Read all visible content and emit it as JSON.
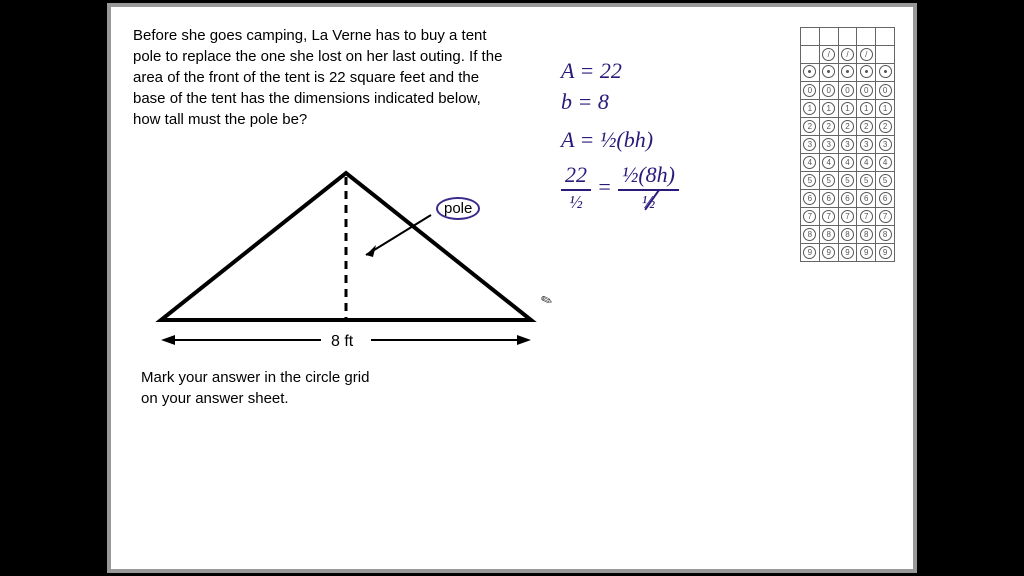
{
  "problem": {
    "text": "Before she goes camping, La Verne has to buy a tent pole to replace the one she lost on her last outing. If the area of the front of the tent is 22 square feet and the base of the tent has the dimensions indicated below, how tall must the pole be?",
    "instruction_line1": "Mark your answer in the circle grid",
    "instruction_line2": "on your answer sheet.",
    "pole_label": "pole",
    "base_label": "8 ft"
  },
  "handwriting": {
    "l1": "A = 22",
    "l2": "b = 8",
    "l3": "A = ½(bh)",
    "l4_left_num": "22",
    "l4_left_den": "½",
    "l4_right_num": "½(8h)",
    "l4_right_den": "½",
    "eq": "="
  },
  "triangle": {
    "stroke": "#000",
    "stroke_width": 4,
    "dash_color": "#000",
    "arrow_color": "#000"
  },
  "colors": {
    "handwriting": "#2a1a7a",
    "page_bg": "#ffffff",
    "page_border": "#999999",
    "letterbox": "#000000"
  },
  "grid": {
    "columns": 5,
    "digit_rows": [
      "0",
      "1",
      "2",
      "3",
      "4",
      "5",
      "6",
      "7",
      "8",
      "9"
    ]
  }
}
